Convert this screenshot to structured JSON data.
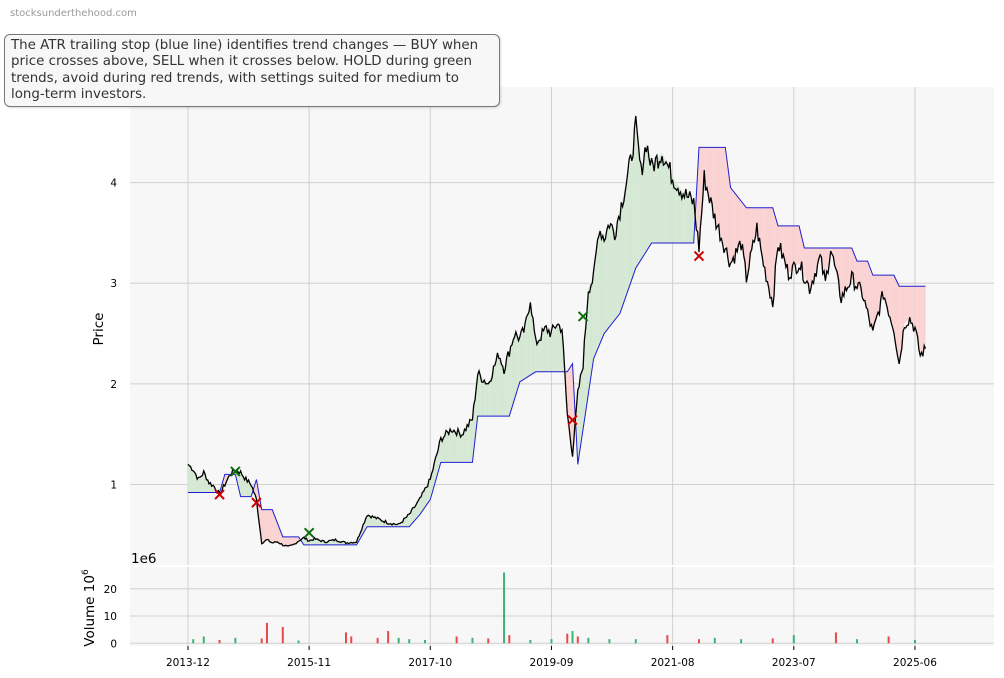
{
  "watermark": "stocksunderthehood.com",
  "annotation": "The ATR trailing stop (blue line) identifies trend changes — BUY when price crosses above, SELL when it crosses below. HOLD during green trends, avoid during red trends, with settings suited for medium to long-term investors.",
  "colors": {
    "price": "#000000",
    "stop": "#1f1fd0",
    "bull_fill": "#d4e8d4",
    "bear_fill": "#fad2d2",
    "buy": "#0b6e0b",
    "sell": "#cc0000",
    "vol_up": "#3cb371",
    "vol_down": "#e84a4a",
    "grid": "#d0d0d0",
    "panel_bg": "#f7f7f7"
  },
  "chart_data": {
    "type": "line",
    "price_panel": {
      "ylabel": "Price",
      "yticks": [
        1,
        2,
        3,
        4
      ],
      "ylim": [
        0.2,
        4.95
      ]
    },
    "volume_panel": {
      "ylabel": "Volume  10",
      "ylabel_exponent": "6",
      "scale_label": "1e6",
      "yticks": [
        0,
        10,
        20
      ],
      "ylim": [
        -1,
        28
      ]
    },
    "xlim": [
      "2013-01-01",
      "2026-09-01"
    ],
    "xticks": [
      "2013-12",
      "2015-11",
      "2017-10",
      "2019-09",
      "2021-08",
      "2023-07",
      "2025-06"
    ],
    "grid": true,
    "price": [
      [
        "2013-12",
        1.2
      ],
      [
        "2014-01",
        1.15
      ],
      [
        "2014-02",
        1.05
      ],
      [
        "2014-03",
        1.12
      ],
      [
        "2014-04",
        1.02
      ],
      [
        "2014-05",
        0.98
      ],
      [
        "2014-06",
        0.9
      ],
      [
        "2014-07",
        1.0
      ],
      [
        "2014-08",
        1.1
      ],
      [
        "2014-09",
        1.15
      ],
      [
        "2014-10",
        1.12
      ],
      [
        "2014-11",
        1.05
      ],
      [
        "2014-12",
        1.0
      ],
      [
        "2015-01",
        0.85
      ],
      [
        "2015-02",
        0.42
      ],
      [
        "2015-03",
        0.45
      ],
      [
        "2015-04",
        0.42
      ],
      [
        "2015-05",
        0.43
      ],
      [
        "2015-06",
        0.4
      ],
      [
        "2015-07",
        0.38
      ],
      [
        "2015-08",
        0.4
      ],
      [
        "2015-09",
        0.44
      ],
      [
        "2015-10",
        0.47
      ],
      [
        "2015-11",
        0.44
      ],
      [
        "2015-12",
        0.46
      ],
      [
        "2016-02",
        0.43
      ],
      [
        "2016-04",
        0.45
      ],
      [
        "2016-06",
        0.42
      ],
      [
        "2016-08",
        0.43
      ],
      [
        "2016-10",
        0.7
      ],
      [
        "2016-12",
        0.66
      ],
      [
        "2017-02",
        0.62
      ],
      [
        "2017-04",
        0.6
      ],
      [
        "2017-06",
        0.7
      ],
      [
        "2017-08",
        0.85
      ],
      [
        "2017-10",
        1.05
      ],
      [
        "2017-12",
        1.45
      ],
      [
        "2018-02",
        1.55
      ],
      [
        "2018-04",
        1.5
      ],
      [
        "2018-06",
        1.65
      ],
      [
        "2018-07",
        2.1
      ],
      [
        "2018-09",
        2.0
      ],
      [
        "2018-11",
        2.3
      ],
      [
        "2018-12",
        2.15
      ],
      [
        "2019-02",
        2.5
      ],
      [
        "2019-03",
        2.45
      ],
      [
        "2019-04",
        2.55
      ],
      [
        "2019-05",
        2.85
      ],
      [
        "2019-06",
        2.4
      ],
      [
        "2019-08",
        2.55
      ],
      [
        "2019-09",
        2.5
      ],
      [
        "2019-10",
        2.6
      ],
      [
        "2019-11",
        2.55
      ],
      [
        "2019-12",
        1.7
      ],
      [
        "2020-01",
        1.3
      ],
      [
        "2020-02",
        1.9
      ],
      [
        "2020-03",
        2.2
      ],
      [
        "2020-04",
        2.95
      ],
      [
        "2020-05",
        3.05
      ],
      [
        "2020-06",
        3.55
      ],
      [
        "2020-07",
        3.45
      ],
      [
        "2020-08",
        3.6
      ],
      [
        "2020-09",
        3.5
      ],
      [
        "2020-11",
        3.95
      ],
      [
        "2020-12",
        4.2
      ],
      [
        "2021-01",
        4.55
      ],
      [
        "2021-02",
        4.1
      ],
      [
        "2021-03",
        4.4
      ],
      [
        "2021-04",
        4.15
      ],
      [
        "2021-06",
        4.3
      ],
      [
        "2021-08",
        4.05
      ],
      [
        "2021-10",
        3.9
      ],
      [
        "2021-12",
        3.8
      ],
      [
        "2022-01",
        3.35
      ],
      [
        "2022-02",
        4.05
      ],
      [
        "2022-03",
        3.85
      ],
      [
        "2022-04",
        3.65
      ],
      [
        "2022-05",
        3.5
      ],
      [
        "2022-07",
        3.2
      ],
      [
        "2022-09",
        3.4
      ],
      [
        "2022-10",
        3.05
      ],
      [
        "2022-12",
        3.55
      ],
      [
        "2023-01",
        3.25
      ],
      [
        "2023-03",
        2.8
      ],
      [
        "2023-04",
        3.4
      ],
      [
        "2023-06",
        3.1
      ],
      [
        "2023-08",
        3.2
      ],
      [
        "2023-10",
        2.95
      ],
      [
        "2023-12",
        3.25
      ],
      [
        "2024-01",
        3.0
      ],
      [
        "2024-02",
        3.35
      ],
      [
        "2024-04",
        2.85
      ],
      [
        "2024-06",
        3.05
      ],
      [
        "2024-08",
        2.9
      ],
      [
        "2024-10",
        2.5
      ],
      [
        "2024-12",
        2.9
      ],
      [
        "2025-02",
        2.55
      ],
      [
        "2025-03",
        2.2
      ],
      [
        "2025-04",
        2.6
      ],
      [
        "2025-05",
        2.65
      ],
      [
        "2025-06",
        2.55
      ],
      [
        "2025-07",
        2.28
      ],
      [
        "2025-08",
        2.35
      ]
    ],
    "atr_stop": [
      [
        "2013-12",
        0.92
      ],
      [
        "2014-06",
        0.92
      ],
      [
        "2014-07",
        1.1
      ],
      [
        "2014-09",
        1.1
      ],
      [
        "2014-10",
        0.88
      ],
      [
        "2014-12",
        0.88
      ],
      [
        "2015-01",
        1.05
      ],
      [
        "2015-02",
        0.75
      ],
      [
        "2015-04",
        0.75
      ],
      [
        "2015-06",
        0.48
      ],
      [
        "2015-09",
        0.48
      ],
      [
        "2015-10",
        0.4
      ],
      [
        "2016-08",
        0.4
      ],
      [
        "2016-10",
        0.58
      ],
      [
        "2017-06",
        0.58
      ],
      [
        "2017-08",
        0.7
      ],
      [
        "2017-10",
        0.85
      ],
      [
        "2017-12",
        1.22
      ],
      [
        "2018-06",
        1.22
      ],
      [
        "2018-07",
        1.68
      ],
      [
        "2019-01",
        1.68
      ],
      [
        "2019-03",
        2.02
      ],
      [
        "2019-06",
        2.12
      ],
      [
        "2019-12",
        2.12
      ],
      [
        "2020-01",
        2.2
      ],
      [
        "2020-02",
        1.2
      ],
      [
        "2020-03",
        1.55
      ],
      [
        "2020-05",
        2.25
      ],
      [
        "2020-07",
        2.5
      ],
      [
        "2020-10",
        2.7
      ],
      [
        "2021-01",
        3.15
      ],
      [
        "2021-04",
        3.4
      ],
      [
        "2021-12",
        3.4
      ],
      [
        "2022-01",
        4.35
      ],
      [
        "2022-06",
        4.35
      ],
      [
        "2022-07",
        3.95
      ],
      [
        "2022-10",
        3.75
      ],
      [
        "2023-03",
        3.75
      ],
      [
        "2023-04",
        3.57
      ],
      [
        "2023-08",
        3.57
      ],
      [
        "2023-09",
        3.35
      ],
      [
        "2024-06",
        3.35
      ],
      [
        "2024-07",
        3.22
      ],
      [
        "2024-09",
        3.22
      ],
      [
        "2024-10",
        3.08
      ],
      [
        "2025-02",
        3.08
      ],
      [
        "2025-03",
        2.97
      ],
      [
        "2025-08",
        2.97
      ]
    ],
    "buy_signals": [
      [
        "2014-09",
        1.13
      ],
      [
        "2015-11",
        0.52
      ],
      [
        "2020-03",
        2.67
      ]
    ],
    "sell_signals": [
      [
        "2014-06",
        0.9
      ],
      [
        "2015-01",
        0.82
      ],
      [
        "2020-01",
        1.64
      ],
      [
        "2022-01",
        3.27
      ]
    ],
    "volume_units": "millions",
    "volume_bars": [
      [
        "2014-01",
        1.5,
        1
      ],
      [
        "2014-03",
        2.5,
        1
      ],
      [
        "2014-06",
        1.2,
        0
      ],
      [
        "2014-09",
        2.0,
        1
      ],
      [
        "2015-02",
        1.8,
        0
      ],
      [
        "2015-03",
        7.5,
        0
      ],
      [
        "2015-06",
        6.0,
        0
      ],
      [
        "2015-09",
        1.0,
        1
      ],
      [
        "2016-06",
        4.0,
        0
      ],
      [
        "2016-07",
        2.5,
        0
      ],
      [
        "2016-12",
        2.0,
        0
      ],
      [
        "2017-02",
        4.5,
        0
      ],
      [
        "2017-04",
        2.0,
        1
      ],
      [
        "2017-06",
        1.5,
        1
      ],
      [
        "2017-09",
        1.2,
        1
      ],
      [
        "2018-03",
        2.5,
        0
      ],
      [
        "2018-06",
        2.0,
        1
      ],
      [
        "2018-09",
        1.8,
        0
      ],
      [
        "2018-12",
        26.0,
        1
      ],
      [
        "2019-01",
        3.0,
        0
      ],
      [
        "2019-05",
        1.2,
        1
      ],
      [
        "2019-09",
        1.5,
        1
      ],
      [
        "2019-12",
        3.5,
        0
      ],
      [
        "2020-01",
        4.5,
        1
      ],
      [
        "2020-02",
        2.5,
        0
      ],
      [
        "2020-04",
        2.0,
        1
      ],
      [
        "2020-08",
        1.5,
        1
      ],
      [
        "2021-01",
        1.5,
        1
      ],
      [
        "2021-07",
        3.0,
        0
      ],
      [
        "2022-01",
        1.5,
        0
      ],
      [
        "2022-04",
        2.0,
        1
      ],
      [
        "2022-09",
        1.5,
        1
      ],
      [
        "2023-03",
        1.8,
        0
      ],
      [
        "2023-07",
        3.0,
        1
      ],
      [
        "2024-03",
        4.0,
        0
      ],
      [
        "2024-07",
        1.5,
        1
      ],
      [
        "2025-01",
        2.5,
        0
      ],
      [
        "2025-06",
        1.2,
        1
      ]
    ]
  }
}
